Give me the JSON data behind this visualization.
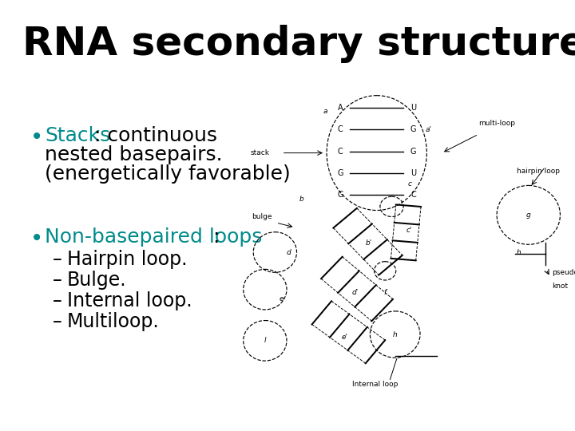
{
  "title": "RNA secondary structure cont’d",
  "background_color": "#ffffff",
  "title_fontsize": 36,
  "title_color": "#000000",
  "bullet_color": "#008B8B",
  "text_color": "#000000",
  "bullet1_label": "Stacks",
  "bullet1_colon": ": continuous",
  "bullet1_line2": "nested basepairs.",
  "bullet1_line3": "(energetically favorable)",
  "bullet2_label": "Non-basepaired loops",
  "bullet2_colon": ":",
  "subitems": [
    "Hairpin loop.",
    "Bulge.",
    "Internal loop.",
    "Multiloop."
  ],
  "bullet_fontsize": 18,
  "subitem_fontsize": 17,
  "bp_labels": [
    [
      "A",
      "U"
    ],
    [
      "C",
      "G"
    ],
    [
      "C",
      "G"
    ],
    [
      "G",
      "U"
    ],
    [
      "G",
      "C"
    ]
  ]
}
